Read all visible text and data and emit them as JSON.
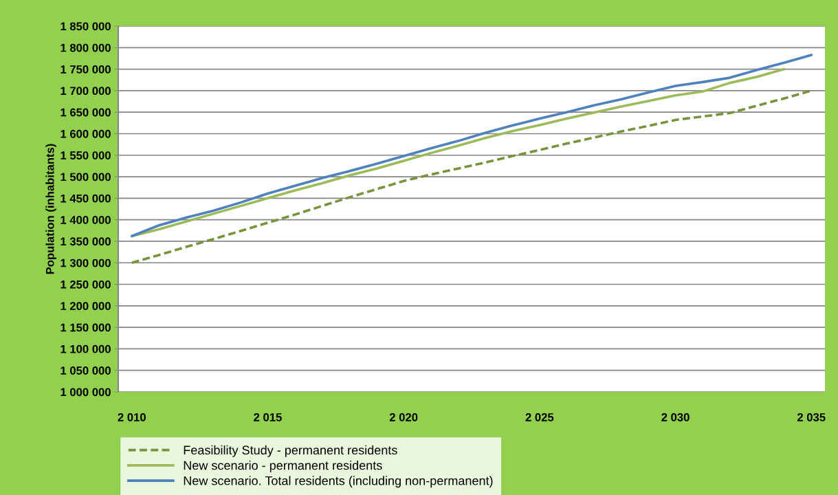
{
  "chart_data": {
    "type": "line",
    "ylabel": "Population (inhabitants)",
    "x": [
      2010,
      2011,
      2012,
      2013,
      2014,
      2015,
      2016,
      2017,
      2018,
      2019,
      2020,
      2021,
      2022,
      2023,
      2024,
      2025,
      2026,
      2027,
      2028,
      2029,
      2030,
      2031,
      2032,
      2033,
      2034,
      2035
    ],
    "series": [
      {
        "name": "Feasibility Study - permanent residents",
        "color": "#77933c",
        "line_style": "dashed",
        "values": [
          1300000,
          1318000,
          1337000,
          1355000,
          1374000,
          1393000,
          1412000,
          1432000,
          1452000,
          1471000,
          1490000,
          1505000,
          1519000,
          1533000,
          1548000,
          1562000,
          1577000,
          1591000,
          1605000,
          1618000,
          1632000,
          1640000,
          1648000,
          1665000,
          1682000,
          1700000
        ]
      },
      {
        "name": "New scenario - permanent residents",
        "color": "#9bbb59",
        "line_style": "solid",
        "values": [
          1362000,
          1378000,
          1396000,
          1414000,
          1432000,
          1450000,
          1468000,
          1485000,
          1503000,
          1519000,
          1537000,
          1555000,
          1572000,
          1590000,
          1606000,
          1620000,
          1635000,
          1649000,
          1663000,
          1676000,
          1689000,
          1698000,
          1718000,
          1732000,
          1750000,
          null
        ]
      },
      {
        "name": "New scenario. Total residents (including non-permanent)",
        "color": "#4f81bd",
        "line_style": "solid",
        "values": [
          1362000,
          1387000,
          1405000,
          1421000,
          1440000,
          1461000,
          1479000,
          1497000,
          1513000,
          1530000,
          1548000,
          1566000,
          1583000,
          1602000,
          1619000,
          1635000,
          1650000,
          1666000,
          1680000,
          1696000,
          1711000,
          1720000,
          1730000,
          1748000,
          1765000,
          1783000
        ]
      }
    ],
    "xlim": [
      2009.5,
      2035.5
    ],
    "xticks": [
      {
        "value": 2010,
        "label": "2 010"
      },
      {
        "value": 2015,
        "label": "2 015"
      },
      {
        "value": 2020,
        "label": "2 020"
      },
      {
        "value": 2025,
        "label": "2 025"
      },
      {
        "value": 2030,
        "label": "2 030"
      },
      {
        "value": 2035,
        "label": "2 035"
      }
    ],
    "ylim": [
      1000000,
      1850000
    ],
    "yticks": [
      {
        "value": 1000000,
        "label": "1 000 000"
      },
      {
        "value": 1050000,
        "label": "1 050 000"
      },
      {
        "value": 1100000,
        "label": "1 100 000"
      },
      {
        "value": 1150000,
        "label": "1 150 000"
      },
      {
        "value": 1200000,
        "label": "1 200 000"
      },
      {
        "value": 1250000,
        "label": "1 250 000"
      },
      {
        "value": 1300000,
        "label": "1 300 000"
      },
      {
        "value": 1350000,
        "label": "1 350 000"
      },
      {
        "value": 1400000,
        "label": "1 400 000"
      },
      {
        "value": 1450000,
        "label": "1 450 000"
      },
      {
        "value": 1500000,
        "label": "1 500 000"
      },
      {
        "value": 1550000,
        "label": "1 550 000"
      },
      {
        "value": 1600000,
        "label": "1 600 000"
      },
      {
        "value": 1650000,
        "label": "1 650 000"
      },
      {
        "value": 1700000,
        "label": "1 700 000"
      },
      {
        "value": 1750000,
        "label": "1 750 000"
      },
      {
        "value": 1800000,
        "label": "1 800 000"
      },
      {
        "value": 1850000,
        "label": "1 850 000"
      }
    ],
    "grid": "y",
    "legend": "bottom",
    "marker": "none"
  }
}
